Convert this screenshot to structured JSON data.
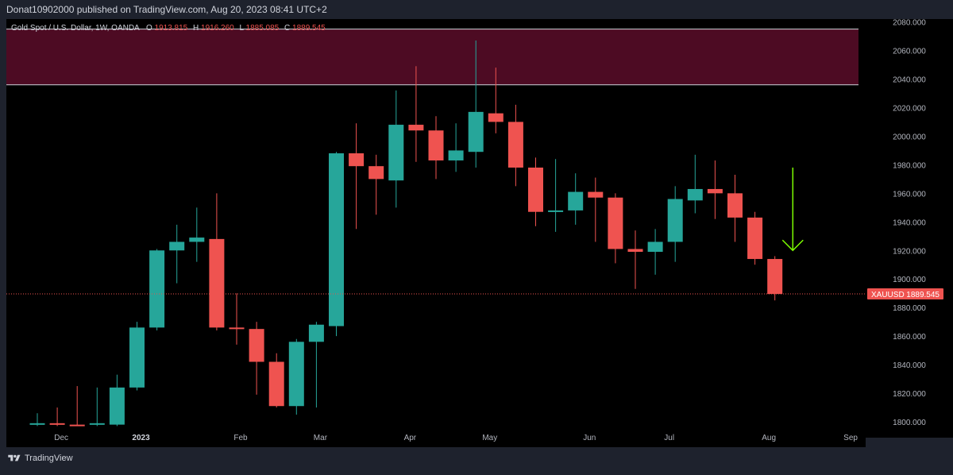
{
  "header": {
    "published_text": "Donat10902000 published on TradingView.com, Aug 20, 2023 08:41 UTC+2"
  },
  "footer": {
    "brand_text": "TradingView"
  },
  "colors": {
    "up": "#26a69a",
    "down": "#ef5350",
    "zone_fill": "#4d0b23",
    "zone_border": "#d1d4dc",
    "arrow": "#7cfc00",
    "price_label_bg": "#ef5350",
    "background": "#000000"
  },
  "chart_data": {
    "type": "candlestick",
    "symbol": "XAUUSD",
    "legend": {
      "name": "Gold Spot / U.S. Dollar, 1W, OANDA",
      "o_label": "O",
      "o_value": "1913.815",
      "h_label": "H",
      "h_value": "1916.260",
      "l_label": "L",
      "l_value": "1885.085",
      "c_label": "C",
      "c_value": "1889.545"
    },
    "last_price_label": "1889.545",
    "last_price": 1889.545,
    "ylim": [
      1795,
      2082
    ],
    "y_ticks": [
      "1800.000",
      "1820.000",
      "1840.000",
      "1860.000",
      "1880.000",
      "1900.000",
      "1920.000",
      "1940.000",
      "1960.000",
      "1980.000",
      "2000.000",
      "2020.000",
      "2040.000",
      "2060.000",
      "2080.000"
    ],
    "y_tick_values": [
      1800,
      1820,
      1840,
      1860,
      1880,
      1900,
      1920,
      1940,
      1960,
      1980,
      2000,
      2020,
      2040,
      2060,
      2080
    ],
    "x_ticks": [
      {
        "label": "Dec",
        "index": 1.2,
        "strong": false
      },
      {
        "label": "2023",
        "index": 5.2,
        "strong": true
      },
      {
        "label": "Feb",
        "index": 10.2,
        "strong": false
      },
      {
        "label": "Mar",
        "index": 14.2,
        "strong": false
      },
      {
        "label": "Apr",
        "index": 18.7,
        "strong": false
      },
      {
        "label": "May",
        "index": 22.7,
        "strong": false
      },
      {
        "label": "Jun",
        "index": 27.7,
        "strong": false
      },
      {
        "label": "Jul",
        "index": 31.7,
        "strong": false
      },
      {
        "label": "Aug",
        "index": 36.7,
        "strong": false
      },
      {
        "label": "Sep",
        "index": 40.8,
        "strong": false
      }
    ],
    "resistance_zone": {
      "from": 2036,
      "to": 2075
    },
    "arrow": {
      "index": 37.9,
      "from": 1978,
      "to": 1920
    },
    "candles": [
      {
        "o": 1798,
        "h": 1806,
        "l": 1797,
        "c": 1799
      },
      {
        "o": 1799,
        "h": 1810,
        "l": 1797,
        "c": 1798
      },
      {
        "o": 1798,
        "h": 1825,
        "l": 1797,
        "c": 1797
      },
      {
        "o": 1798,
        "h": 1824,
        "l": 1797,
        "c": 1799
      },
      {
        "o": 1798,
        "h": 1833,
        "l": 1797,
        "c": 1824
      },
      {
        "o": 1824,
        "h": 1870,
        "l": 1822,
        "c": 1866
      },
      {
        "o": 1866,
        "h": 1921,
        "l": 1864,
        "c": 1920
      },
      {
        "o": 1920,
        "h": 1938,
        "l": 1897,
        "c": 1926
      },
      {
        "o": 1926,
        "h": 1950,
        "l": 1912,
        "c": 1929
      },
      {
        "o": 1928,
        "h": 1960,
        "l": 1864,
        "c": 1866
      },
      {
        "o": 1866,
        "h": 1890,
        "l": 1854,
        "c": 1865
      },
      {
        "o": 1865,
        "h": 1870,
        "l": 1819,
        "c": 1842
      },
      {
        "o": 1842,
        "h": 1848,
        "l": 1810,
        "c": 1811
      },
      {
        "o": 1811,
        "h": 1858,
        "l": 1805,
        "c": 1856
      },
      {
        "o": 1856,
        "h": 1870,
        "l": 1810,
        "c": 1868
      },
      {
        "o": 1867,
        "h": 1989,
        "l": 1860,
        "c": 1988
      },
      {
        "o": 1988,
        "h": 2009,
        "l": 1935,
        "c": 1979
      },
      {
        "o": 1979,
        "h": 1987,
        "l": 1945,
        "c": 1970
      },
      {
        "o": 1969,
        "h": 2032,
        "l": 1950,
        "c": 2008
      },
      {
        "o": 2008,
        "h": 2049,
        "l": 1982,
        "c": 2004
      },
      {
        "o": 2004,
        "h": 2014,
        "l": 1970,
        "c": 1983
      },
      {
        "o": 1983,
        "h": 2009,
        "l": 1975,
        "c": 1990
      },
      {
        "o": 1989,
        "h": 2067,
        "l": 1978,
        "c": 2017
      },
      {
        "o": 2016,
        "h": 2048,
        "l": 2002,
        "c": 2010
      },
      {
        "o": 2010,
        "h": 2022,
        "l": 1965,
        "c": 1978
      },
      {
        "o": 1978,
        "h": 1985,
        "l": 1937,
        "c": 1947
      },
      {
        "o": 1947,
        "h": 1984,
        "l": 1933,
        "c": 1948
      },
      {
        "o": 1948,
        "h": 1974,
        "l": 1938,
        "c": 1961
      },
      {
        "o": 1961,
        "h": 1971,
        "l": 1926,
        "c": 1957
      },
      {
        "o": 1957,
        "h": 1960,
        "l": 1911,
        "c": 1921
      },
      {
        "o": 1921,
        "h": 1934,
        "l": 1893,
        "c": 1919
      },
      {
        "o": 1919,
        "h": 1935,
        "l": 1903,
        "c": 1926
      },
      {
        "o": 1926,
        "h": 1965,
        "l": 1912,
        "c": 1956
      },
      {
        "o": 1955,
        "h": 1987,
        "l": 1946,
        "c": 1963
      },
      {
        "o": 1963,
        "h": 1983,
        "l": 1942,
        "c": 1960
      },
      {
        "o": 1960,
        "h": 1973,
        "l": 1926,
        "c": 1943
      },
      {
        "o": 1943,
        "h": 1947,
        "l": 1910,
        "c": 1914
      },
      {
        "o": 1914,
        "h": 1916,
        "l": 1885,
        "c": 1889.5
      }
    ]
  }
}
